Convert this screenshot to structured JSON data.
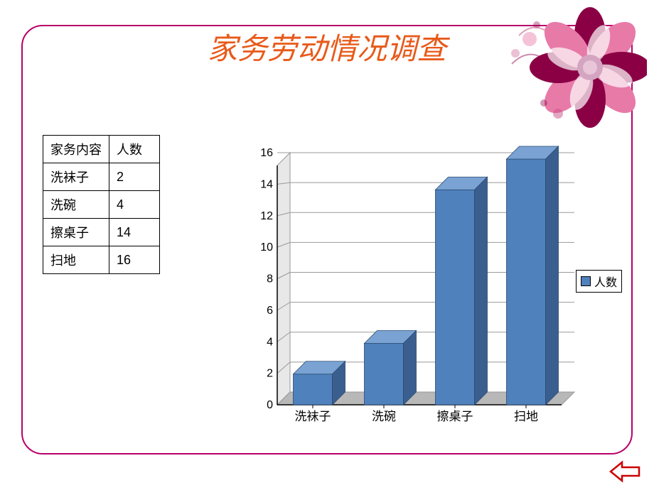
{
  "title": "家务劳动情况调查",
  "table": {
    "headers": [
      "家务内容",
      "人数"
    ],
    "rows": [
      [
        "洗袜子",
        "2"
      ],
      [
        "洗碗",
        "4"
      ],
      [
        "擦桌子",
        "14"
      ],
      [
        "扫地",
        "16"
      ]
    ]
  },
  "chart": {
    "type": "bar-3d",
    "categories": [
      "洗袜子",
      "洗碗",
      "擦桌子",
      "扫地"
    ],
    "values": [
      2,
      4,
      14,
      16
    ],
    "bar_color": "#4f81bd",
    "bar_top_color": "#7aa3d4",
    "bar_side_color": "#3a5f8f",
    "ylim": [
      0,
      16
    ],
    "ytick_step": 2,
    "grid_color": "#999999",
    "floor_color": "#b8b8b8",
    "wall_color": "#e8e8e8",
    "axis_label_fontsize": 17,
    "tick_fontsize": 16,
    "legend_label": "人数",
    "bar_width": 0.55,
    "depth": 18
  },
  "flower_colors": {
    "petal_dark": "#8b0045",
    "petal_light": "#e87aa8",
    "center": "#d4a5c0",
    "swirl": "#c94f87"
  }
}
